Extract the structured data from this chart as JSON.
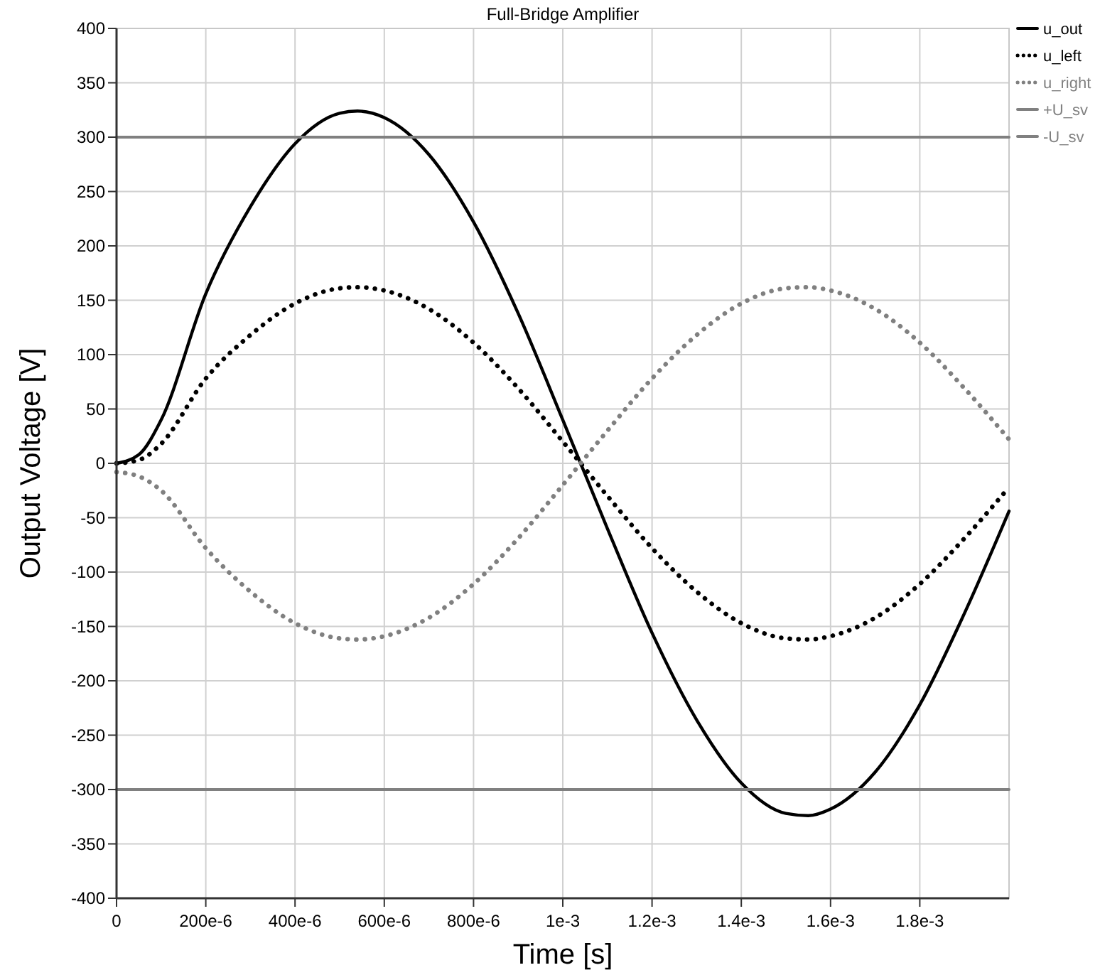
{
  "chart_data": {
    "type": "line",
    "title": "Full-Bridge Amplifier",
    "xlabel": "Time [s]",
    "ylabel": "Output Voltage [V]",
    "x": [
      0,
      5e-05,
      0.0001,
      0.0002,
      0.0003,
      0.0004,
      0.0005,
      0.00054,
      0.0006,
      0.0007,
      0.0008,
      0.0009,
      0.001,
      0.0011,
      0.0012,
      0.0013,
      0.0014,
      0.0015,
      0.00155,
      0.0016,
      0.0017,
      0.0018,
      0.0019,
      0.002
    ],
    "series": [
      {
        "name": "u_out",
        "color": "#000000",
        "line_style": "solid",
        "values": [
          0,
          8,
          40,
          156,
          236,
          294,
          322,
          324,
          318,
          284,
          222,
          138,
          40,
          -60,
          -156,
          -236,
          -294,
          -322,
          -324,
          -318,
          -284,
          -222,
          -138,
          -44
        ]
      },
      {
        "name": "u_left",
        "color": "#000000",
        "line_style": "dotted",
        "values": [
          0,
          3,
          18,
          78,
          118,
          147,
          161,
          162,
          159,
          142,
          111,
          69,
          20,
          -30,
          -78,
          -118,
          -147,
          -161,
          -162,
          -159,
          -142,
          -111,
          -69,
          -22
        ]
      },
      {
        "name": "u_right",
        "color": "#808080",
        "line_style": "dotted",
        "values": [
          -8,
          -12,
          -25,
          -78,
          -118,
          -147,
          -161,
          -162,
          -159,
          -142,
          -111,
          -69,
          -20,
          30,
          78,
          118,
          147,
          161,
          162,
          159,
          142,
          111,
          69,
          22
        ]
      },
      {
        "name": "+U_sv",
        "color": "#808080",
        "line_style": "solid",
        "values": [
          300,
          300,
          300,
          300,
          300,
          300,
          300,
          300,
          300,
          300,
          300,
          300,
          300,
          300,
          300,
          300,
          300,
          300,
          300,
          300,
          300,
          300,
          300,
          300
        ]
      },
      {
        "name": "-U_sv",
        "color": "#808080",
        "line_style": "solid",
        "values": [
          -300,
          -300,
          -300,
          -300,
          -300,
          -300,
          -300,
          -300,
          -300,
          -300,
          -300,
          -300,
          -300,
          -300,
          -300,
          -300,
          -300,
          -300,
          -300,
          -300,
          -300,
          -300,
          -300,
          -300
        ]
      }
    ],
    "xlim": [
      0,
      0.002
    ],
    "xticks": [
      0,
      {
        "value": 0.0002,
        "label": "200e-6"
      },
      {
        "value": 0.0004,
        "label": "400e-6"
      },
      {
        "value": 0.0006,
        "label": "600e-6"
      },
      {
        "value": 0.0008,
        "label": "800e-6"
      },
      {
        "value": 0.001,
        "label": "1e-3"
      },
      {
        "value": 0.0012,
        "label": "1.2e-3"
      },
      {
        "value": 0.0014,
        "label": "1.4e-3"
      },
      {
        "value": 0.0016,
        "label": "1.6e-3"
      },
      {
        "value": 0.0018,
        "label": "1.8e-3"
      }
    ],
    "ylim": [
      -400,
      400
    ],
    "yticks": [
      -400,
      -350,
      -300,
      -250,
      -200,
      -150,
      -100,
      -50,
      0,
      50,
      100,
      150,
      200,
      250,
      300,
      350,
      400
    ],
    "grid": true,
    "legend": "top right",
    "marker": "none"
  }
}
